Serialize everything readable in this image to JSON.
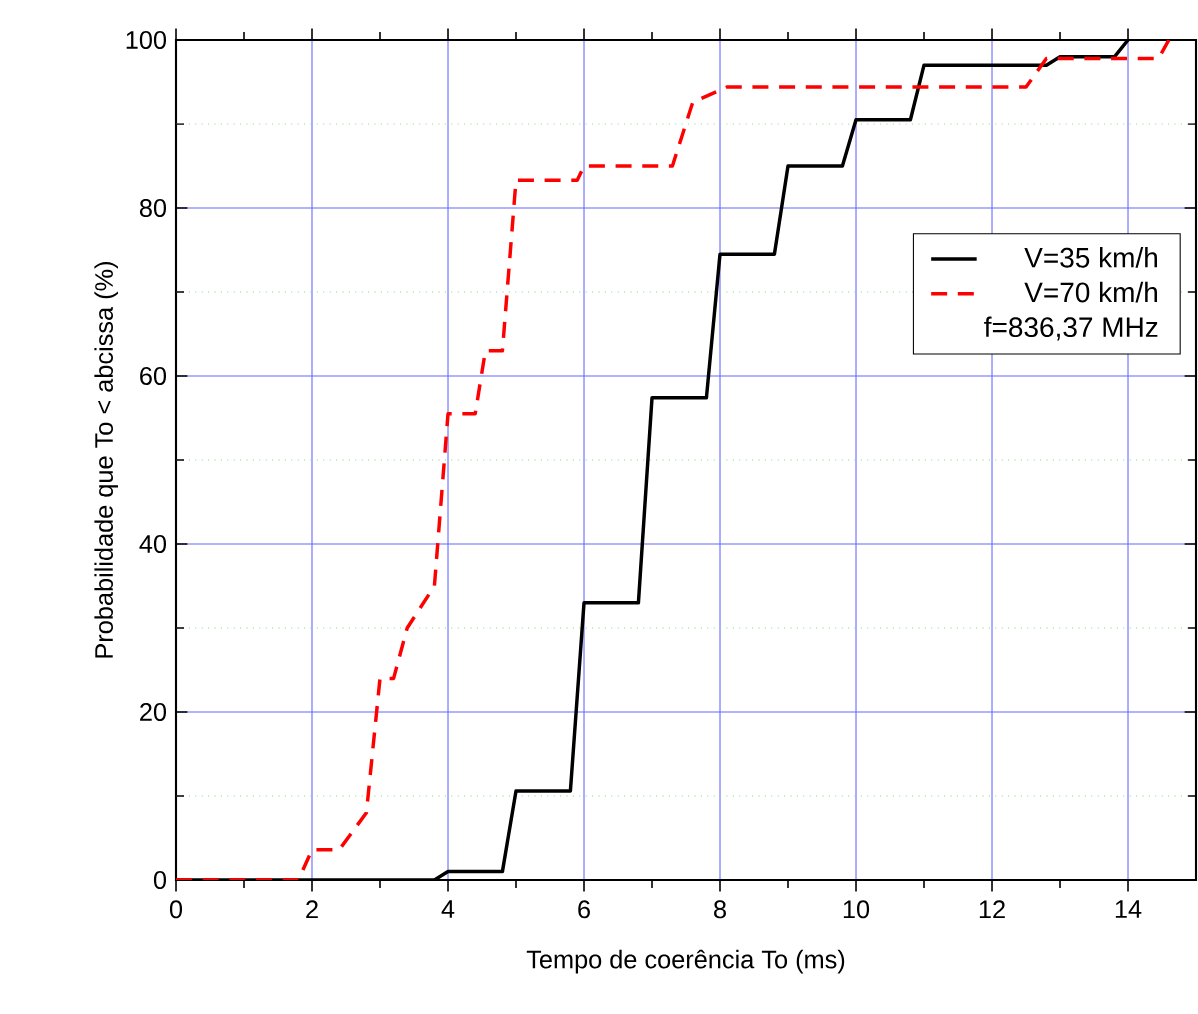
{
  "chart_data": {
    "type": "line",
    "xlabel": "Tempo de coerência To (ms)",
    "ylabel": "Probabilidade que To < abcissa (%)",
    "xlim": [
      0,
      15
    ],
    "ylim": [
      0,
      100
    ],
    "xticks": [
      0,
      {
        "value": 1,
        "label": null
      },
      2,
      {
        "value": 3,
        "label": null
      },
      4,
      {
        "value": 5,
        "label": null
      },
      6,
      {
        "value": 7,
        "label": null
      },
      8,
      {
        "value": 9,
        "label": null
      },
      10,
      {
        "value": 11,
        "label": null
      },
      12,
      {
        "value": 13,
        "label": null
      },
      14
    ],
    "yticks": [
      0,
      {
        "value": 10,
        "label": null
      },
      20,
      {
        "value": 30,
        "label": null
      },
      40,
      {
        "value": 50,
        "label": null
      },
      60,
      {
        "value": 70,
        "label": null
      },
      80,
      {
        "value": 90,
        "label": null
      },
      100
    ],
    "grid": true,
    "legend": "right",
    "marker": "none",
    "annotations": [
      "f=836,37 MHz"
    ],
    "series": [
      {
        "name": "V=35 km/h",
        "color": "#000000",
        "line_style": "solid",
        "x": [
          0,
          3.8,
          4.0,
          4.8,
          5.0,
          5.8,
          6.0,
          6.8,
          7.0,
          7.8,
          8.0,
          8.8,
          9.0,
          9.8,
          10.0,
          10.8,
          11.0,
          12.8,
          13.0,
          13.8,
          14.0
        ],
        "values": [
          0,
          0,
          1,
          1,
          10.6,
          10.6,
          33,
          33,
          57.4,
          57.4,
          74.5,
          74.5,
          85,
          85,
          90.5,
          90.5,
          97,
          97,
          98,
          98,
          100
        ]
      },
      {
        "name": "V=70 km/h",
        "color": "#ff0000",
        "line_style": "dashed",
        "x": [
          0,
          1.8,
          2.0,
          2.4,
          2.8,
          3.0,
          3.2,
          3.4,
          3.8,
          4.0,
          4.4,
          4.55,
          4.8,
          5.0,
          5.9,
          6.0,
          7.3,
          7.6,
          8.1,
          12.5,
          12.8,
          14.45,
          14.6
        ],
        "values": [
          0,
          0,
          3.6,
          3.6,
          8,
          24,
          24,
          30,
          35,
          55.5,
          55.5,
          63,
          63,
          83.3,
          83.3,
          85,
          85,
          92.6,
          94.4,
          94.4,
          97.8,
          97.8,
          100
        ]
      }
    ]
  }
}
